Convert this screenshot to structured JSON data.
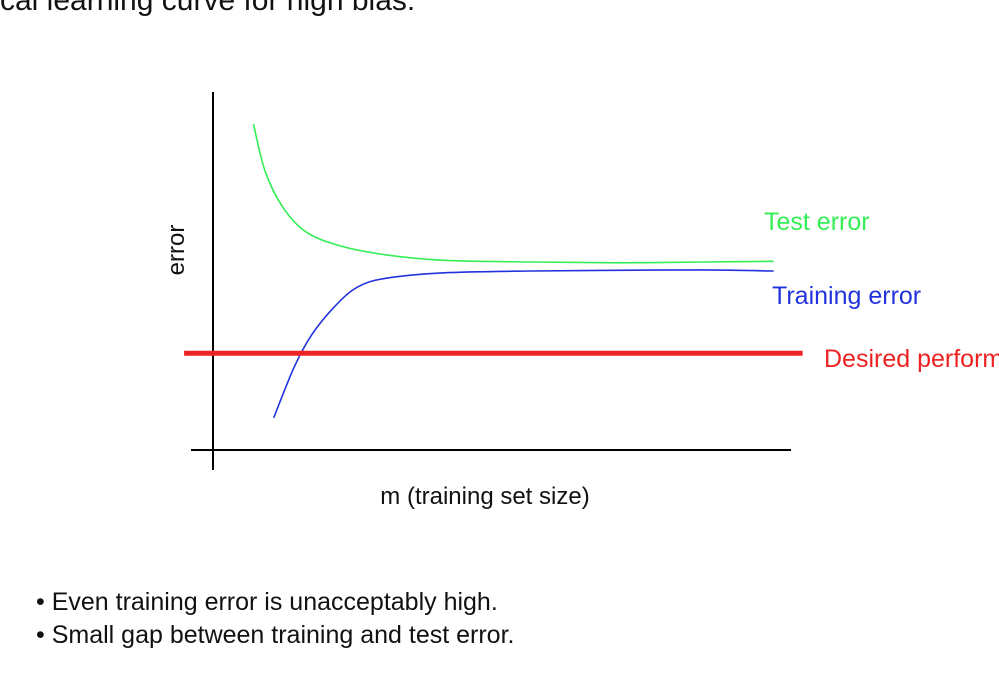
{
  "slide": {
    "title": "cal learning curve for high bias:",
    "bullets": [
      "Even training error is unacceptably high.",
      "Small gap between training and test error."
    ]
  },
  "chart_data": {
    "type": "line",
    "title": "",
    "xlabel": "m (training set size)",
    "ylabel": "error",
    "grid": false,
    "xlim": [
      0,
      100
    ],
    "ylim": [
      0,
      100
    ],
    "series": [
      {
        "name": "Test error",
        "color": "#33ee55",
        "x": [
          7,
          9,
          12,
          16,
          22,
          30,
          40,
          55,
          70,
          85,
          97
        ],
        "y": [
          91,
          78,
          68,
          61,
          57,
          54.5,
          53,
          52.5,
          52.3,
          52.5,
          52.7
        ]
      },
      {
        "name": "Training error",
        "color": "#2233dd",
        "x": [
          10.5,
          14,
          17,
          21,
          25,
          30,
          40,
          55,
          70,
          85,
          97
        ],
        "y": [
          9,
          23,
          32,
          40,
          45.5,
          48,
          49.5,
          50,
          50.2,
          50.3,
          50
        ]
      },
      {
        "name": "Desired performance",
        "color": "#ee2222",
        "x": [
          -5,
          102
        ],
        "y": [
          27,
          27
        ]
      }
    ],
    "line_labels": [
      {
        "text": "Test error",
        "color": "#33ee55"
      },
      {
        "text": "Training error",
        "color": "#2233dd"
      },
      {
        "text": "Desired performance",
        "color": "#ee2222"
      }
    ]
  }
}
